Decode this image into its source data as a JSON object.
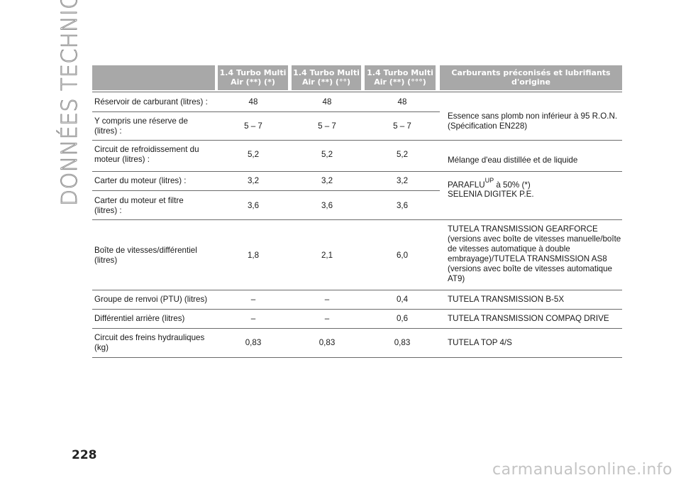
{
  "sidebar": {
    "section_title": "DONNÉES TECHNIQUES"
  },
  "page": {
    "number": "228",
    "watermark": "carmanualsonline.info"
  },
  "table": {
    "headers": [
      "",
      "1.4 Turbo Multi\nAir (**) (*)",
      "1.4 Turbo Multi\nAir (**) (°°)",
      "1.4 Turbo Multi\nAir (**) (°°°)",
      "Carburants préconisés et lubrifiants\nd'origine"
    ],
    "rows": [
      {
        "label": "Réservoir de carburant (litres) :",
        "v1": "48",
        "v2": "48",
        "v3": "48"
      },
      {
        "label": "Y compris une réserve de\n(litres) :",
        "v1": "5 – 7",
        "v2": "5 – 7",
        "v3": "5 – 7"
      },
      {
        "label": "Circuit de refroidissement du\nmoteur (litres) :",
        "v1": "5,2",
        "v2": "5,2",
        "v3": "5,2"
      },
      {
        "label": "Carter du moteur (litres) :",
        "v1": "3,2",
        "v2": "3,2",
        "v3": "3,2"
      },
      {
        "label": "Carter du moteur et filtre\n(litres) :",
        "v1": "3,6",
        "v2": "3,6",
        "v3": "3,6"
      },
      {
        "label": "Boîte de vitesses/différentiel\n(litres)",
        "v1": "1,8",
        "v2": "2,1",
        "v3": "6,0"
      },
      {
        "label": "Groupe de renvoi (PTU) (litres)",
        "v1": "–",
        "v2": "–",
        "v3": "0,4"
      },
      {
        "label": "Différentiel arrière (litres)",
        "v1": "–",
        "v2": "–",
        "v3": "0,6"
      },
      {
        "label": "Circuit des freins hydrauliques\n(kg)",
        "v1": "0,83",
        "v2": "0,83",
        "v3": "0,83"
      }
    ],
    "descriptions": {
      "fuel": "Essence sans plomb non inférieur à 95 R.O.N.\n(Spécification EN228)",
      "coolant_line1": "Mélange d'eau distillée et de liquide",
      "coolant_line2_prefix": "PARAFLU",
      "coolant_line2_sup": "UP",
      "coolant_line2_suffix": " à 50% (*)",
      "engine_oil": "SELENIA DIGITEK P.E.",
      "gearbox": "TUTELA TRANSMISSION GEARFORCE\n(versions avec boîte de vitesses manuelle/boîte\nde vitesses automatique à double\nembrayage)/TUTELA TRANSMISSION AS8\n(versions avec boîte de vitesses automatique\nAT9)",
      "ptu": "TUTELA TRANSMISSION B-5X",
      "rear_diff": "TUTELA TRANSMISSION COMPAQ DRIVE",
      "brakes": "TUTELA TOP 4/S"
    }
  }
}
